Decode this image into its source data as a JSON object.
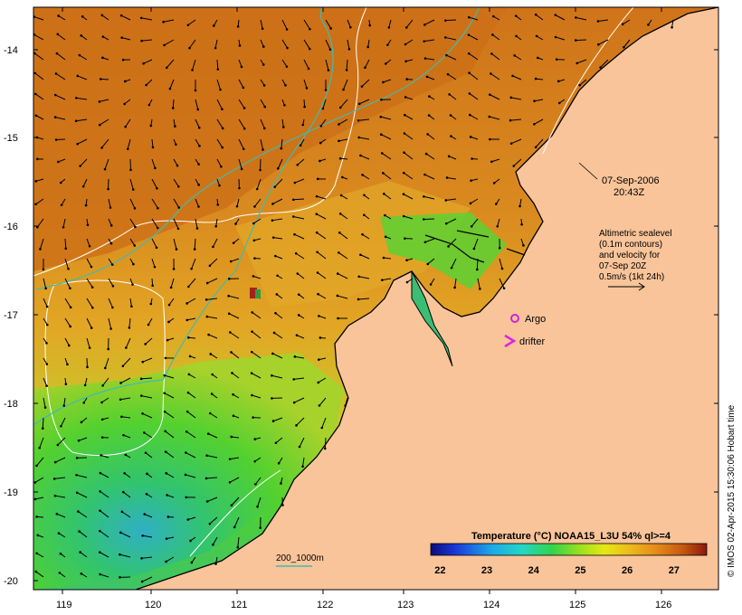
{
  "map": {
    "y_ticks": [
      "-14",
      "-15",
      "-16",
      "-17",
      "-18",
      "-19",
      "-20"
    ],
    "x_ticks": [
      "119",
      "120",
      "121",
      "122",
      "123",
      "124",
      "125",
      "126"
    ],
    "date_label": "07-Sep-2006",
    "time_label": "20:43Z",
    "sealevel_note": [
      "Altimetric sealevel",
      "(0.1m contours)",
      "and velocity for",
      "07-Sep 20Z",
      "0.5m/s (1kt 24h)"
    ],
    "legend_argo": "Argo",
    "legend_drifter": "drifter",
    "isobath_label": "200_1000m",
    "credit": "© IMOS 02-Apr-2015 15:30:06 Hobart time",
    "colors": {
      "land": "#f9c49a",
      "warm_sst": "#d2781b",
      "mid_sst": "#e1a325",
      "cool_sst": "#4fd234",
      "cold_sst": "#2fb0c4",
      "argo_marker": "#d024d0",
      "drifter_marker": "#e022e0",
      "isobath_line": "#3fbcb0"
    }
  },
  "colorbar": {
    "title": "Temperature (°C) NOAA15_L3U 54% ql>=4",
    "ticks": [
      "22",
      "23",
      "24",
      "25",
      "26",
      "27"
    ],
    "range": [
      21.8,
      27.7
    ]
  }
}
